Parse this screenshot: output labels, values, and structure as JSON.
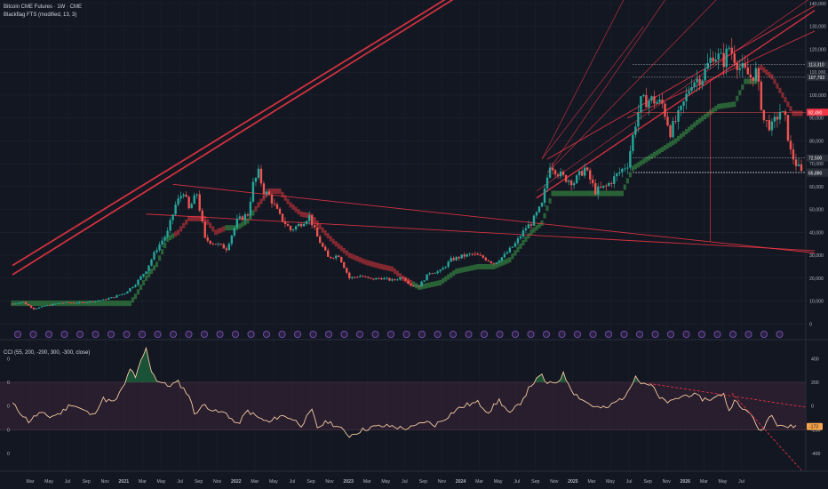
{
  "header": {
    "symbol_line": "Bitcoin CME Futures · 1W · CME",
    "indicator_line": "Blackflag FTS (modified, 13, 3)"
  },
  "oscillator": {
    "title": "CCI (55, 200, -200, 300, -300, close)",
    "current_label": "-173"
  },
  "price_badges": [
    {
      "text": "113,310",
      "value": 113310,
      "style": "dark"
    },
    {
      "text": "107,793",
      "value": 107793,
      "style": "dark"
    },
    {
      "text": "92,490",
      "value": 92490,
      "style": "red"
    },
    {
      "text": "72,500",
      "value": 72500,
      "style": "dark"
    },
    {
      "text": "66,390",
      "value": 66390,
      "style": "dark"
    },
    {
      "text": "65,880",
      "value": 65880,
      "style": "dark"
    }
  ],
  "colors": {
    "background": "#131722",
    "up": "#26a69a",
    "down": "#ef5350",
    "trend_line": "#f23645",
    "stop_green": "#2d6a3a",
    "stop_red": "#8e2a33",
    "cci_line": "#f5c9a0",
    "cci_band": "#3a2438",
    "marker": "#7e57c2"
  },
  "chart_data": {
    "type": "candlestick",
    "price_axis": {
      "ticks": [
        0,
        10000,
        20000,
        30000,
        40000,
        50000,
        60000,
        70000,
        80000,
        90000,
        100000,
        110000,
        120000,
        130000,
        140000
      ],
      "tick_labels": [
        "0",
        "10,000",
        "20,000",
        "30,000",
        "40,000",
        "50,000",
        "60,000",
        "70,000",
        "80,000",
        "90,000",
        "100,000",
        "110,000",
        "120,000",
        "130,000",
        "140,000"
      ],
      "range": [
        -3000,
        140000
      ]
    },
    "cci_axis": {
      "ticks": [
        400,
        200,
        0,
        -200,
        -400
      ],
      "tick_labels": [
        "400",
        "200",
        "0",
        "-200",
        "-400"
      ],
      "left_tick_labels": [
        "0",
        "0",
        "0",
        "0",
        "0"
      ],
      "range": [
        -550,
        530
      ],
      "band": [
        -200,
        200
      ]
    },
    "time_axis": {
      "labels": [
        "Mar",
        "May",
        "Jul",
        "Sep",
        "Nov",
        "2021",
        "Mar",
        "May",
        "Jul",
        "Sep",
        "Nov",
        "2022",
        "Mar",
        "May",
        "Jul",
        "Sep",
        "Nov",
        "2023",
        "Mar",
        "May",
        "Jul",
        "Sep",
        "Nov",
        "2024",
        "Mar",
        "May",
        "Jul",
        "Sep",
        "Nov",
        "2025",
        "Mar",
        "May",
        "Jul",
        "Sep",
        "Nov",
        "2026",
        "Mar",
        "May",
        "Jul"
      ],
      "bold_labels": [
        "2021",
        "2022",
        "2023",
        "2024",
        "2025",
        "2026"
      ]
    },
    "price_anchors": [
      [
        0,
        8800
      ],
      [
        4,
        9500
      ],
      [
        8,
        6500
      ],
      [
        12,
        7800
      ],
      [
        18,
        9200
      ],
      [
        26,
        9300
      ],
      [
        34,
        10500
      ],
      [
        38,
        11800
      ],
      [
        42,
        13500
      ],
      [
        46,
        17500
      ],
      [
        50,
        23500
      ],
      [
        54,
        33000
      ],
      [
        58,
        40000
      ],
      [
        61,
        52000
      ],
      [
        64,
        58000
      ],
      [
        66,
        50000
      ],
      [
        69,
        57000
      ],
      [
        72,
        37000
      ],
      [
        76,
        35000
      ],
      [
        80,
        33000
      ],
      [
        84,
        45000
      ],
      [
        88,
        48000
      ],
      [
        90,
        61000
      ],
      [
        92,
        66000
      ],
      [
        94,
        58000
      ],
      [
        96,
        56000
      ],
      [
        100,
        47000
      ],
      [
        104,
        41000
      ],
      [
        108,
        44000
      ],
      [
        111,
        47000
      ],
      [
        114,
        38000
      ],
      [
        118,
        29000
      ],
      [
        122,
        30000
      ],
      [
        126,
        20000
      ],
      [
        130,
        21000
      ],
      [
        134,
        19500
      ],
      [
        138,
        20000
      ],
      [
        142,
        19000
      ],
      [
        146,
        20500
      ],
      [
        149,
        17000
      ],
      [
        152,
        16600
      ],
      [
        156,
        22500
      ],
      [
        160,
        23000
      ],
      [
        164,
        28000
      ],
      [
        168,
        29500
      ],
      [
        172,
        30500
      ],
      [
        176,
        29000
      ],
      [
        180,
        26500
      ],
      [
        184,
        30000
      ],
      [
        188,
        35000
      ],
      [
        192,
        42000
      ],
      [
        194,
        44000
      ],
      [
        198,
        52000
      ],
      [
        201,
        70000
      ],
      [
        204,
        66000
      ],
      [
        206,
        64000
      ],
      [
        210,
        62000
      ],
      [
        214,
        68000
      ],
      [
        218,
        58000
      ],
      [
        222,
        60000
      ],
      [
        226,
        65000
      ],
      [
        230,
        70000
      ],
      [
        233,
        88000
      ],
      [
        235,
        97000
      ],
      [
        239,
        98000
      ],
      [
        243,
        96000
      ],
      [
        246,
        84000
      ],
      [
        250,
        93000
      ],
      [
        254,
        106000
      ],
      [
        258,
        108000
      ],
      [
        262,
        118000
      ],
      [
        266,
        115000
      ],
      [
        268,
        121000
      ],
      [
        272,
        112000
      ],
      [
        276,
        108000
      ],
      [
        278,
        110000
      ],
      [
        281,
        89000
      ],
      [
        284,
        86000
      ],
      [
        287,
        93000
      ],
      [
        289,
        89000
      ],
      [
        291,
        75000
      ],
      [
        293,
        70000
      ],
      [
        295,
        66000
      ]
    ],
    "stop_line_anchors": [
      [
        0,
        9000
      ],
      [
        44,
        9000
      ],
      [
        46,
        12000
      ],
      [
        50,
        20000
      ],
      [
        54,
        26000
      ],
      [
        58,
        37000
      ],
      [
        62,
        40000
      ],
      [
        66,
        46000
      ],
      [
        72,
        46000
      ],
      [
        76,
        40000
      ],
      [
        80,
        42000
      ],
      [
        84,
        42000
      ],
      [
        88,
        45000
      ],
      [
        92,
        52000
      ],
      [
        96,
        58000
      ],
      [
        100,
        58000
      ],
      [
        104,
        52000
      ],
      [
        108,
        48000
      ],
      [
        112,
        47000
      ],
      [
        116,
        41000
      ],
      [
        120,
        36000
      ],
      [
        126,
        30000
      ],
      [
        132,
        27000
      ],
      [
        138,
        25000
      ],
      [
        142,
        24000
      ],
      [
        146,
        20000
      ],
      [
        152,
        16000
      ],
      [
        160,
        18000
      ],
      [
        166,
        23000
      ],
      [
        174,
        25000
      ],
      [
        180,
        25000
      ],
      [
        186,
        28000
      ],
      [
        190,
        34000
      ],
      [
        194,
        40000
      ],
      [
        198,
        44000
      ],
      [
        202,
        57000
      ],
      [
        228,
        57000
      ],
      [
        232,
        68000
      ],
      [
        240,
        74000
      ],
      [
        248,
        80000
      ],
      [
        256,
        88000
      ],
      [
        264,
        95000
      ],
      [
        270,
        96000
      ],
      [
        274,
        106000
      ],
      [
        278,
        106000
      ],
      [
        280,
        112000
      ],
      [
        284,
        108000
      ],
      [
        288,
        100000
      ],
      [
        292,
        92000
      ]
    ],
    "stop_colors": [
      [
        0,
        44,
        "green"
      ],
      [
        45,
        60,
        "green"
      ],
      [
        61,
        67,
        "red"
      ],
      [
        68,
        79,
        "red"
      ],
      [
        80,
        90,
        "green"
      ],
      [
        91,
        149,
        "red"
      ],
      [
        150,
        203,
        "green"
      ],
      [
        204,
        228,
        "green"
      ],
      [
        229,
        278,
        "green"
      ],
      [
        279,
        295,
        "red"
      ]
    ],
    "cci_anchors": [
      [
        0,
        20
      ],
      [
        6,
        -130
      ],
      [
        10,
        -60
      ],
      [
        14,
        -90
      ],
      [
        18,
        -60
      ],
      [
        22,
        20
      ],
      [
        26,
        -30
      ],
      [
        30,
        -80
      ],
      [
        34,
        60
      ],
      [
        38,
        30
      ],
      [
        42,
        180
      ],
      [
        44,
        320
      ],
      [
        46,
        230
      ],
      [
        48,
        380
      ],
      [
        50,
        480
      ],
      [
        52,
        300
      ],
      [
        54,
        220
      ],
      [
        58,
        170
      ],
      [
        62,
        200
      ],
      [
        66,
        90
      ],
      [
        68,
        -60
      ],
      [
        72,
        10
      ],
      [
        76,
        -50
      ],
      [
        80,
        -60
      ],
      [
        84,
        -160
      ],
      [
        88,
        -40
      ],
      [
        92,
        -100
      ],
      [
        96,
        -140
      ],
      [
        100,
        -80
      ],
      [
        104,
        -100
      ],
      [
        108,
        -160
      ],
      [
        112,
        -40
      ],
      [
        114,
        -180
      ],
      [
        118,
        -130
      ],
      [
        122,
        -180
      ],
      [
        126,
        -250
      ],
      [
        130,
        -210
      ],
      [
        134,
        -180
      ],
      [
        138,
        -170
      ],
      [
        142,
        -170
      ],
      [
        146,
        -190
      ],
      [
        150,
        -180
      ],
      [
        154,
        -130
      ],
      [
        158,
        -160
      ],
      [
        162,
        -100
      ],
      [
        166,
        -30
      ],
      [
        170,
        10
      ],
      [
        174,
        30
      ],
      [
        178,
        -50
      ],
      [
        182,
        50
      ],
      [
        186,
        -70
      ],
      [
        190,
        30
      ],
      [
        194,
        180
      ],
      [
        198,
        260
      ],
      [
        200,
        180
      ],
      [
        204,
        210
      ],
      [
        206,
        270
      ],
      [
        210,
        110
      ],
      [
        214,
        40
      ],
      [
        218,
        -10
      ],
      [
        222,
        -20
      ],
      [
        226,
        40
      ],
      [
        230,
        100
      ],
      [
        233,
        270
      ],
      [
        235,
        200
      ],
      [
        239,
        180
      ],
      [
        242,
        60
      ],
      [
        246,
        30
      ],
      [
        250,
        80
      ],
      [
        254,
        100
      ],
      [
        258,
        60
      ],
      [
        262,
        60
      ],
      [
        266,
        110
      ],
      [
        268,
        -50
      ],
      [
        270,
        70
      ],
      [
        272,
        -20
      ],
      [
        276,
        -50
      ],
      [
        278,
        -170
      ],
      [
        280,
        -210
      ],
      [
        282,
        -130
      ],
      [
        284,
        -60
      ],
      [
        286,
        -150
      ],
      [
        288,
        -160
      ],
      [
        290,
        -180
      ],
      [
        292,
        -170
      ]
    ],
    "trend_lines": [
      {
        "from": [
          0,
          25500
        ],
        "to": [
          176,
          152000
        ],
        "width": 1.8
      },
      {
        "from": [
          0,
          21500
        ],
        "to": [
          176,
          150000
        ],
        "width": 1.8
      },
      {
        "from": [
          50,
          48000
        ],
        "to": [
          300,
          32000
        ],
        "width": 0.9
      },
      {
        "from": [
          60,
          61000
        ],
        "to": [
          300,
          31000
        ],
        "width": 0.9
      },
      {
        "from": [
          196,
          55000
        ],
        "to": [
          300,
          137000
        ],
        "width": 1.4
      },
      {
        "from": [
          200,
          72000
        ],
        "to": [
          300,
          139000
        ],
        "width": 0.9
      },
      {
        "from": [
          196,
          58000
        ],
        "to": [
          298,
          142000
        ],
        "width": 0.6
      },
      {
        "from": [
          198,
          72000
        ],
        "to": [
          236,
          130000
        ],
        "width": 0.6
      },
      {
        "from": [
          198,
          72000
        ],
        "to": [
          230,
          145000
        ],
        "width": 0.6
      },
      {
        "from": [
          200,
          66000
        ],
        "to": [
          246,
          145000
        ],
        "width": 0.6
      },
      {
        "from": [
          200,
          66000
        ],
        "to": [
          266,
          145000
        ],
        "width": 0.6
      },
      {
        "from": [
          230,
          90000
        ],
        "to": [
          300,
          128000
        ],
        "width": 0.9
      }
    ]
  }
}
